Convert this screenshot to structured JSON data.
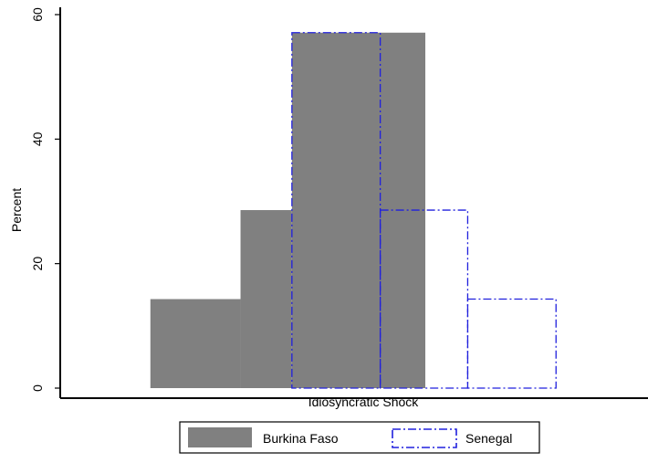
{
  "chart_data": {
    "type": "bar",
    "title": "",
    "xlabel": "Idiosyncratic Shock",
    "ylabel": "Percent",
    "ylim": [
      0,
      60
    ],
    "yticks": [
      "0",
      "20",
      "40",
      "60"
    ],
    "x_tick_labels": false,
    "grid": false,
    "legend_position": "bottom",
    "series": [
      {
        "name": "Burkina Faso",
        "style": "filled",
        "color": "#808080",
        "bins": [
          {
            "start": 1,
            "end": 2,
            "value": 14.3
          },
          {
            "start": 2,
            "end": 2.57,
            "value": 28.6
          },
          {
            "start": 2.57,
            "end": 4.05,
            "value": 57.1
          }
        ]
      },
      {
        "name": "Senegal",
        "style": "outline-dashdot",
        "color": "#2020dd",
        "bins": [
          {
            "start": 2.57,
            "end": 3.55,
            "value": 57.1
          },
          {
            "start": 3.55,
            "end": 4.52,
            "value": 28.6
          },
          {
            "start": 4.52,
            "end": 5.5,
            "value": 14.3
          }
        ]
      }
    ]
  }
}
